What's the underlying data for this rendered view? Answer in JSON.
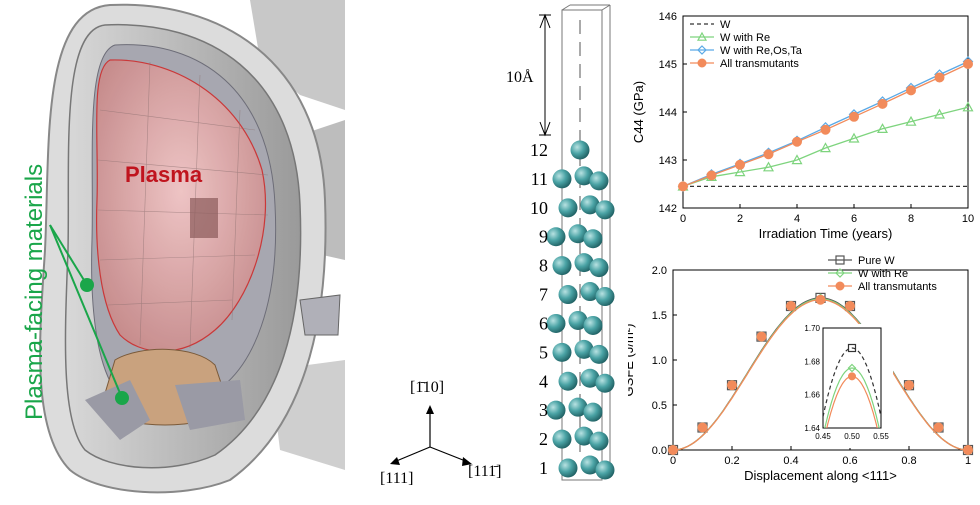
{
  "left_panel": {
    "plasma_label": "Plasma",
    "materials_label": "Plasma-facing materials"
  },
  "middle_panel": {
    "scale_label": "10Å",
    "layer_numbers": [
      "12",
      "11",
      "10",
      "9",
      "8",
      "7",
      "6",
      "5",
      "4",
      "3",
      "2",
      "1"
    ],
    "axis_up": "[1̄10]",
    "axis_left": "[111]",
    "axis_right": "[111̄]"
  },
  "chart_data": [
    {
      "type": "line",
      "xlabel": "Irradiation Time (years)",
      "ylabel": "C44 (GPa)",
      "xlim": [
        0,
        10
      ],
      "ylim": [
        142,
        146
      ],
      "xticks": [
        "0",
        "2",
        "4",
        "6",
        "8",
        "10"
      ],
      "yticks": [
        "142",
        "143",
        "144",
        "145",
        "146"
      ],
      "legend_position": "top-left",
      "series": [
        {
          "name": "W",
          "style": "dashed",
          "color": "#333333",
          "marker": "none",
          "x": [
            0,
            10
          ],
          "y": [
            142.45,
            142.45
          ]
        },
        {
          "name": "W with Re",
          "color": "#7ed47e",
          "marker": "triangle",
          "x": [
            0,
            1,
            2,
            3,
            4,
            5,
            6,
            7,
            8,
            9,
            10
          ],
          "y": [
            142.45,
            142.65,
            142.75,
            142.85,
            143.0,
            143.25,
            143.45,
            143.65,
            143.8,
            143.95,
            144.1
          ]
        },
        {
          "name": "W with Re,Os,Ta",
          "color": "#5aa9e6",
          "marker": "diamond",
          "x": [
            0,
            1,
            2,
            3,
            4,
            5,
            6,
            7,
            8,
            9,
            10
          ],
          "y": [
            142.45,
            142.7,
            142.92,
            143.15,
            143.4,
            143.68,
            143.95,
            144.22,
            144.5,
            144.78,
            145.05
          ]
        },
        {
          "name": "All transmutants",
          "color": "#f28b5b",
          "marker": "circle",
          "x": [
            0,
            1,
            2,
            3,
            4,
            5,
            6,
            7,
            8,
            9,
            10
          ],
          "y": [
            142.45,
            142.68,
            142.9,
            143.12,
            143.38,
            143.63,
            143.9,
            144.17,
            144.45,
            144.72,
            145.0
          ]
        }
      ]
    },
    {
      "type": "line",
      "xlabel": "Displacement along <111>",
      "ylabel": "GSFE (J/m²)",
      "xlim": [
        0,
        1
      ],
      "ylim": [
        0,
        2
      ],
      "xticks": [
        "0",
        "0.2",
        "0.4",
        "0.6",
        "0.8",
        "1"
      ],
      "yticks": [
        "0.0",
        "0.5",
        "1.0",
        "1.5",
        "2.0"
      ],
      "legend_position": "top-right",
      "series": [
        {
          "name": "Pure W",
          "color": "#555555",
          "marker": "square",
          "x": [
            0,
            0.1,
            0.2,
            0.3,
            0.4,
            0.5,
            0.6,
            0.7,
            0.8,
            0.9,
            1.0
          ],
          "y": [
            0,
            0.25,
            0.72,
            1.26,
            1.6,
            1.69,
            1.6,
            1.26,
            0.72,
            0.25,
            0
          ]
        },
        {
          "name": "W with Re",
          "color": "#7ed47e",
          "marker": "diamond",
          "x": [
            0,
            0.1,
            0.2,
            0.3,
            0.4,
            0.5,
            0.6,
            0.7,
            0.8,
            0.9,
            1.0
          ],
          "y": [
            0,
            0.25,
            0.72,
            1.26,
            1.6,
            1.68,
            1.6,
            1.26,
            0.72,
            0.25,
            0
          ]
        },
        {
          "name": "All transmutants",
          "color": "#f28b5b",
          "marker": "circle",
          "x": [
            0,
            0.1,
            0.2,
            0.3,
            0.4,
            0.5,
            0.6,
            0.7,
            0.8,
            0.9,
            1.0
          ],
          "y": [
            0,
            0.25,
            0.72,
            1.26,
            1.6,
            1.67,
            1.6,
            1.26,
            0.72,
            0.25,
            0
          ]
        }
      ],
      "inset": {
        "xlim": [
          0.45,
          0.55
        ],
        "ylim": [
          1.64,
          1.7
        ],
        "xticks": [
          "0.45",
          "0.50",
          "0.55"
        ],
        "yticks": [
          "1.64",
          "1.66",
          "1.68",
          "1.70"
        ],
        "series": [
          {
            "name": "Pure W",
            "color": "#333333",
            "style": "dashed",
            "marker": "square",
            "peak": 1.688
          },
          {
            "name": "W with Re",
            "color": "#7ed47e",
            "marker": "diamond",
            "peak": 1.676
          },
          {
            "name": "All transmutants",
            "color": "#f28b5b",
            "marker": "circle",
            "peak": 1.671
          }
        ]
      }
    }
  ]
}
